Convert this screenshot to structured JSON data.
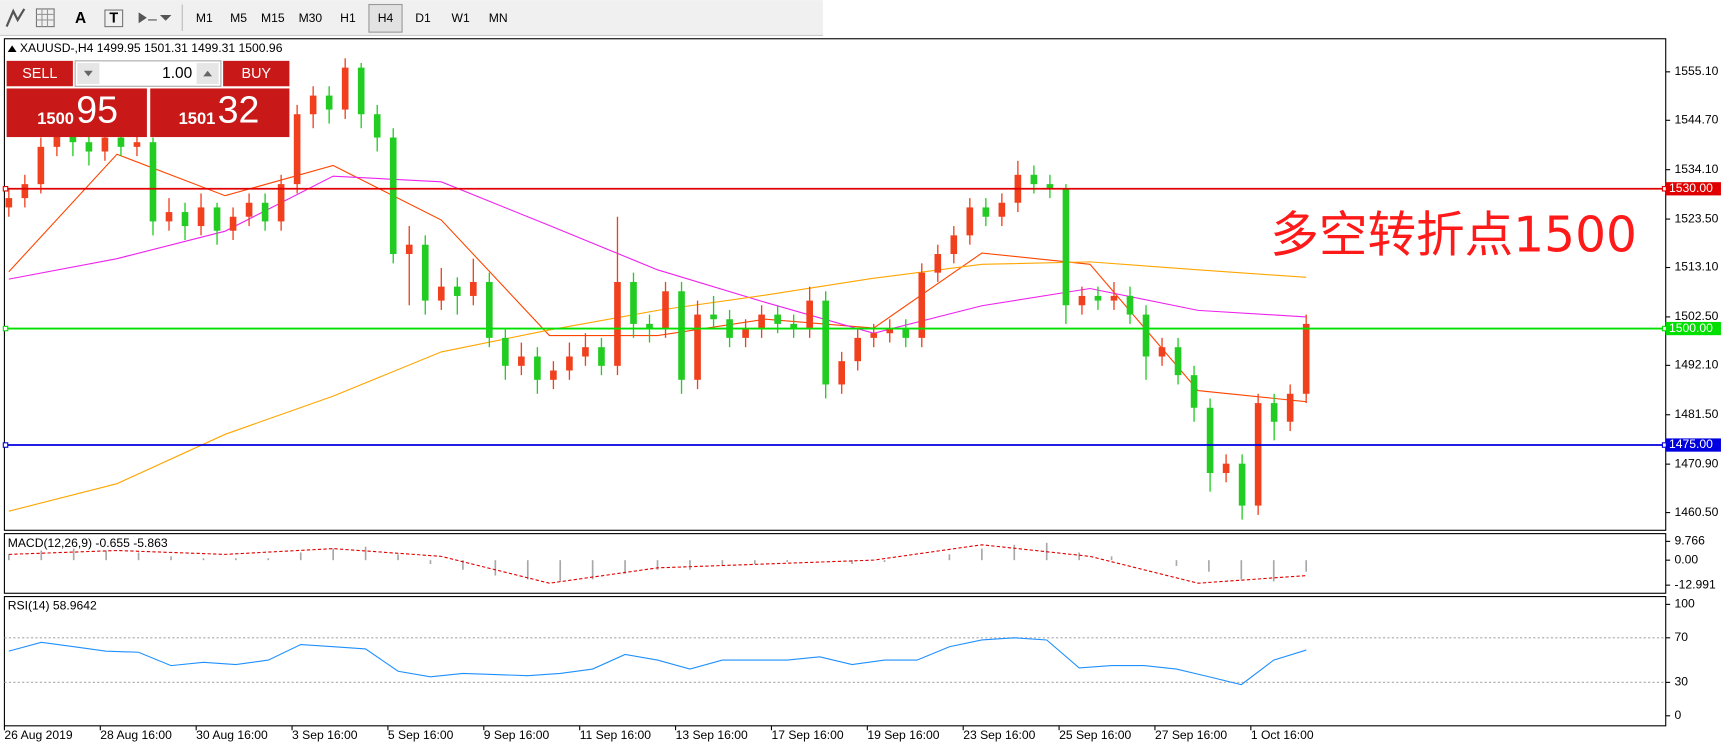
{
  "toolbar": {
    "tools": [
      "A",
      "T"
    ],
    "timeframes": [
      "M1",
      "M5",
      "M15",
      "M30",
      "H1",
      "H4",
      "D1",
      "W1",
      "MN"
    ],
    "active_timeframe": "H4"
  },
  "chart": {
    "header": "XAUUSD-,H4  1499.95 1501.31 1499.31 1500.96",
    "trade_panel": {
      "sell": "SELL",
      "buy": "BUY",
      "lot": "1.00",
      "sell_price_small": "1500",
      "sell_price_big": "95",
      "buy_price_small": "1501",
      "buy_price_big": "32"
    },
    "ylim": [
      1456.7,
      1562.2
    ],
    "yticks": [
      {
        "value": 1555.1,
        "label": "1555.10"
      },
      {
        "value": 1544.7,
        "label": "1544.70"
      },
      {
        "value": 1534.1,
        "label": "1534.10"
      },
      {
        "value": 1523.5,
        "label": "1523.50"
      },
      {
        "value": 1513.1,
        "label": "1513.10"
      },
      {
        "value": 1502.5,
        "label": "1502.50"
      },
      {
        "value": 1492.1,
        "label": "1492.10"
      },
      {
        "value": 1481.5,
        "label": "1481.50"
      },
      {
        "value": 1470.9,
        "label": "1470.90"
      },
      {
        "value": 1460.5,
        "label": "1460.50"
      }
    ],
    "levels": [
      {
        "value": 1530,
        "label": "1530.00",
        "color": "#e00000"
      },
      {
        "value": 1500,
        "label": "1500.00",
        "color": "#00e000"
      },
      {
        "value": 1475,
        "label": "1475.00",
        "color": "#0000e0"
      }
    ],
    "up_color": "#f0401e",
    "down_color": "#22cc22",
    "candles": [
      [
        1526,
        1530,
        1524,
        1528
      ],
      [
        1528,
        1533,
        1526,
        1531
      ],
      [
        1531,
        1541,
        1529,
        1539
      ],
      [
        1539,
        1546,
        1537,
        1543
      ],
      [
        1543,
        1545,
        1537,
        1540
      ],
      [
        1540,
        1542,
        1535,
        1538
      ],
      [
        1538,
        1543,
        1536,
        1541
      ],
      [
        1541,
        1543,
        1537,
        1539
      ],
      [
        1539,
        1542,
        1537,
        1540
      ],
      [
        1540,
        1541,
        1520,
        1523
      ],
      [
        1523,
        1528,
        1521,
        1525
      ],
      [
        1525,
        1527,
        1519,
        1522
      ],
      [
        1522,
        1529,
        1520,
        1526
      ],
      [
        1526,
        1527,
        1518,
        1521
      ],
      [
        1521,
        1526,
        1519,
        1524
      ],
      [
        1524,
        1529,
        1522,
        1527
      ],
      [
        1527,
        1529,
        1521,
        1523
      ],
      [
        1523,
        1533,
        1521,
        1531
      ],
      [
        1531,
        1548,
        1529,
        1546
      ],
      [
        1546,
        1552,
        1543,
        1550
      ],
      [
        1550,
        1552,
        1544,
        1547
      ],
      [
        1547,
        1558,
        1545,
        1556
      ],
      [
        1556,
        1557,
        1543,
        1546
      ],
      [
        1546,
        1548,
        1538,
        1541
      ],
      [
        1541,
        1543,
        1514,
        1516
      ],
      [
        1516,
        1522,
        1505,
        1518
      ],
      [
        1518,
        1520,
        1503,
        1506
      ],
      [
        1506,
        1513,
        1504,
        1509
      ],
      [
        1509,
        1511,
        1503,
        1507
      ],
      [
        1507,
        1515,
        1505,
        1510
      ],
      [
        1510,
        1512,
        1496,
        1498
      ],
      [
        1498,
        1500,
        1489,
        1492
      ],
      [
        1492,
        1497,
        1490,
        1494
      ],
      [
        1494,
        1496,
        1486,
        1489
      ],
      [
        1489,
        1493,
        1487,
        1491
      ],
      [
        1491,
        1497,
        1489,
        1494
      ],
      [
        1494,
        1499,
        1492,
        1496
      ],
      [
        1496,
        1498,
        1490,
        1492
      ],
      [
        1492,
        1524,
        1490,
        1510
      ],
      [
        1510,
        1512,
        1498,
        1501
      ],
      [
        1501,
        1503,
        1497,
        1500
      ],
      [
        1500,
        1510,
        1498,
        1508
      ],
      [
        1508,
        1510,
        1486,
        1489
      ],
      [
        1489,
        1506,
        1487,
        1503
      ],
      [
        1503,
        1507,
        1500,
        1502
      ],
      [
        1502,
        1504,
        1496,
        1498
      ],
      [
        1498,
        1502,
        1496,
        1500
      ],
      [
        1500,
        1505,
        1498,
        1503
      ],
      [
        1503,
        1505,
        1499,
        1501
      ],
      [
        1501,
        1503,
        1498,
        1500
      ],
      [
        1500,
        1509,
        1498,
        1506
      ],
      [
        1506,
        1508,
        1485,
        1488
      ],
      [
        1488,
        1495,
        1486,
        1493
      ],
      [
        1493,
        1500,
        1491,
        1498
      ],
      [
        1498,
        1501,
        1496,
        1499
      ],
      [
        1499,
        1502,
        1497,
        1500
      ],
      [
        1500,
        1502,
        1496,
        1498
      ],
      [
        1498,
        1514,
        1496,
        1512
      ],
      [
        1512,
        1518,
        1510,
        1516
      ],
      [
        1516,
        1522,
        1514,
        1520
      ],
      [
        1520,
        1528,
        1518,
        1526
      ],
      [
        1526,
        1528,
        1522,
        1524
      ],
      [
        1524,
        1529,
        1522,
        1527
      ],
      [
        1527,
        1536,
        1525,
        1533
      ],
      [
        1533,
        1535,
        1529,
        1531
      ],
      [
        1531,
        1533,
        1528,
        1530
      ],
      [
        1530,
        1531,
        1501,
        1505
      ],
      [
        1505,
        1509,
        1503,
        1507
      ],
      [
        1507,
        1509,
        1504,
        1506
      ],
      [
        1506,
        1510,
        1504,
        1507
      ],
      [
        1507,
        1509,
        1501,
        1503
      ],
      [
        1503,
        1505,
        1489,
        1494
      ],
      [
        1494,
        1498,
        1492,
        1496
      ],
      [
        1496,
        1498,
        1488,
        1490
      ],
      [
        1490,
        1492,
        1480,
        1483
      ],
      [
        1483,
        1485,
        1465,
        1469
      ],
      [
        1469,
        1473,
        1467,
        1471
      ],
      [
        1471,
        1473,
        1459,
        1462
      ],
      [
        1462,
        1486,
        1460,
        1484
      ],
      [
        1484,
        1486,
        1476,
        1480
      ],
      [
        1480,
        1488,
        1478,
        1486
      ],
      [
        1486,
        1503,
        1484,
        1501
      ]
    ],
    "moving_averages": [
      {
        "color": "#ff4500",
        "values": [
          1512.2,
          1537.4,
          1528.5,
          1535,
          1523.3,
          1498.5,
          1498.5,
          1502,
          1500.1,
          1516.2,
          1513.8,
          1486.7,
          1484.3
        ]
      },
      {
        "color": "#ee22ee",
        "values": [
          1510.6,
          1515,
          1520.9,
          1532.7,
          1531.5,
          1522.1,
          1512.6,
          1505.6,
          1499,
          1504.9,
          1508.6,
          1503.9,
          1502.5
        ]
      },
      {
        "color": "#ffa500",
        "values": [
          1460.8,
          1466.7,
          1477.3,
          1485.5,
          1495,
          1499.7,
          1503.9,
          1507.2,
          1510.8,
          1513.8,
          1514.3,
          1512.6,
          1511
        ]
      }
    ],
    "annotation": "多空转折点1500",
    "time_labels": [
      "26 Aug 2019",
      "28 Aug 16:00",
      "30 Aug 16:00",
      "3 Sep 16:00",
      "5 Sep 16:00",
      "9 Sep 16:00",
      "11 Sep 16:00",
      "13 Sep 16:00",
      "17 Sep 16:00",
      "19 Sep 16:00",
      "23 Sep 16:00",
      "25 Sep 16:00",
      "27 Sep 16:00",
      "1 Oct 16:00"
    ]
  },
  "macd": {
    "label": "MACD(12,26,9) -0.655 -5.863",
    "ylim": [
      -17.2,
      13.8
    ],
    "yticks": [
      9.766,
      {
        "value": 0,
        "label": "0.00"
      },
      -12.991
    ],
    "histogram": [
      3,
      5,
      6,
      5,
      4,
      2,
      1,
      1,
      1,
      4,
      6,
      7,
      3,
      -2,
      -5,
      -8,
      -10,
      -11,
      -10,
      -7,
      -5,
      -5,
      -3,
      -2,
      -1,
      0,
      -2,
      -1,
      0,
      3,
      6,
      8,
      9,
      4,
      2,
      0,
      -3,
      -6,
      -10,
      -11,
      -6
    ],
    "signal": [
      3,
      5,
      3,
      6,
      2,
      -12,
      -4,
      -2,
      0,
      8,
      2,
      -12,
      -8
    ],
    "signal_color": "#e00000"
  },
  "rsi": {
    "label": "RSI(14) 58.9642",
    "ylim": [
      -9,
      107
    ],
    "yticks": [
      100,
      70,
      30,
      0
    ],
    "levels": [
      70,
      30
    ],
    "color": "#1e90ff",
    "values": [
      58,
      66,
      62,
      58,
      57,
      45,
      48,
      46,
      50,
      64,
      62,
      60,
      40,
      35,
      38,
      37,
      36,
      38,
      42,
      55,
      50,
      42,
      50,
      50,
      50,
      53,
      46,
      50,
      50,
      62,
      68,
      70,
      68,
      43,
      45,
      45,
      42,
      35,
      28,
      50,
      58.9642
    ]
  }
}
